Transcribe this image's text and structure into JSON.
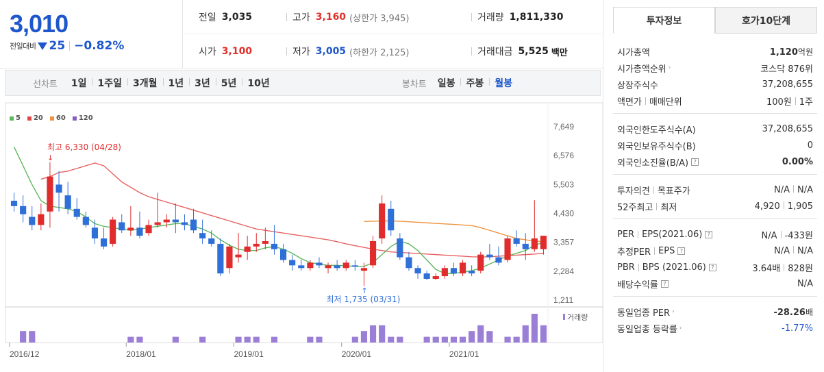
{
  "price": {
    "current": "3,010",
    "change_label": "전일대비",
    "change_amount": "25",
    "change_rate": "−0.82%"
  },
  "info": {
    "prev_label": "전일",
    "prev_value": "3,035",
    "high_label": "고가",
    "high_value": "3,160",
    "high_sub": "(상한가 3,945)",
    "volume_label": "거래량",
    "volume_value": "1,811,330",
    "open_label": "시가",
    "open_value": "3,100",
    "low_label": "저가",
    "low_value": "3,005",
    "low_sub": "(하한가 2,125)",
    "amount_label": "거래대금",
    "amount_value": "5,525",
    "amount_unit": "백만"
  },
  "tabs": {
    "line_label": "선차트",
    "line_periods": [
      "1일",
      "1주일",
      "3개월",
      "1년",
      "3년",
      "5년",
      "10년"
    ],
    "candle_label": "봉차트",
    "candle_periods": [
      "일봉",
      "주봉",
      "월봉"
    ],
    "active_candle": "월봉"
  },
  "legend": [
    {
      "name": "5",
      "color": "#5cb85c"
    },
    {
      "name": "20",
      "color": "#e04848"
    },
    {
      "name": "60",
      "color": "#f0923c"
    },
    {
      "name": "120",
      "color": "#8a5cc4"
    }
  ],
  "chart_data": {
    "type": "candlestick",
    "y_ticks": [
      "7,649",
      "6,576",
      "5,503",
      "4,430",
      "3,357",
      "2,284",
      "1,211"
    ],
    "y_tick_values": [
      7649,
      6576,
      5503,
      4430,
      3357,
      2284,
      1211
    ],
    "x_ticks": [
      "2016/12",
      "2018/01",
      "2019/01",
      "2020/01",
      "2021/01"
    ],
    "x_tick_index": [
      0,
      13,
      25,
      37,
      49
    ],
    "volume_label": "거래량",
    "high_annotation": "최고 6,330 (04/28)",
    "low_annotation": "최저 1,735 (03/31)",
    "high_index": 4,
    "low_index": 39,
    "ohlc": [
      [
        4900,
        5200,
        4500,
        4700
      ],
      [
        4700,
        5100,
        4100,
        4400
      ],
      [
        4300,
        4700,
        3800,
        4000
      ],
      [
        4000,
        4800,
        3800,
        4400
      ],
      [
        4500,
        6330,
        3900,
        5800
      ],
      [
        5500,
        6000,
        4500,
        5200
      ],
      [
        5100,
        5600,
        4400,
        4600
      ],
      [
        4600,
        5000,
        4200,
        4300
      ],
      [
        4300,
        4500,
        3900,
        4000
      ],
      [
        3900,
        4200,
        3300,
        3500
      ],
      [
        3500,
        3900,
        3100,
        3200
      ],
      [
        3300,
        4300,
        3200,
        4200
      ],
      [
        4100,
        4400,
        3700,
        3800
      ],
      [
        3800,
        4700,
        3600,
        3900
      ],
      [
        3900,
        4500,
        3500,
        3600
      ],
      [
        3700,
        4200,
        3600,
        4000
      ],
      [
        4000,
        5200,
        3900,
        4100
      ],
      [
        4100,
        4400,
        3900,
        4200
      ],
      [
        4200,
        4800,
        3700,
        4100
      ],
      [
        4100,
        4400,
        3800,
        4000
      ],
      [
        4200,
        4600,
        3700,
        3800
      ],
      [
        3700,
        4200,
        3300,
        3500
      ],
      [
        3500,
        3800,
        3200,
        3300
      ],
      [
        3300,
        3500,
        2100,
        2200
      ],
      [
        2400,
        3300,
        2200,
        3200
      ],
      [
        2800,
        3700,
        2600,
        2900
      ],
      [
        3000,
        3600,
        2700,
        3200
      ],
      [
        3200,
        3700,
        3000,
        3300
      ],
      [
        3300,
        3900,
        3100,
        3400
      ],
      [
        3300,
        4000,
        2900,
        3100
      ],
      [
        3100,
        3300,
        2600,
        2700
      ],
      [
        2700,
        2900,
        2300,
        2500
      ],
      [
        2500,
        2700,
        2300,
        2400
      ],
      [
        2400,
        2700,
        2300,
        2600
      ],
      [
        2600,
        2800,
        2400,
        2500
      ],
      [
        2400,
        2600,
        2200,
        2500
      ],
      [
        2500,
        2700,
        2300,
        2400
      ],
      [
        2400,
        2700,
        2300,
        2600
      ],
      [
        2500,
        2700,
        2300,
        2450
      ],
      [
        2300,
        2600,
        1735,
        2400
      ],
      [
        2500,
        3600,
        2400,
        3400
      ],
      [
        3500,
        5100,
        3300,
        4800
      ],
      [
        4600,
        4900,
        3600,
        3800
      ],
      [
        3500,
        3700,
        2700,
        2800
      ],
      [
        2800,
        3000,
        2300,
        2400
      ],
      [
        2400,
        2500,
        2000,
        2200
      ],
      [
        2200,
        2300,
        1950,
        2000
      ],
      [
        2000,
        2200,
        1950,
        2100
      ],
      [
        2100,
        2500,
        2000,
        2400
      ],
      [
        2400,
        2600,
        2100,
        2200
      ],
      [
        2200,
        2700,
        2100,
        2600
      ],
      [
        2300,
        2500,
        2100,
        2200
      ],
      [
        2300,
        3000,
        2200,
        2900
      ],
      [
        2900,
        3300,
        2700,
        2800
      ],
      [
        2800,
        3200,
        2500,
        2600
      ],
      [
        2700,
        3600,
        2600,
        3500
      ],
      [
        3500,
        3800,
        3200,
        3300
      ],
      [
        3300,
        3700,
        2700,
        3100
      ],
      [
        3100,
        4920,
        3000,
        3500
      ],
      [
        3100,
        3600,
        2900,
        3600
      ]
    ],
    "volume": [
      0,
      2,
      2,
      0,
      0,
      0,
      0,
      0,
      0,
      0,
      0,
      0,
      0,
      1,
      1,
      0,
      0,
      0,
      1,
      0,
      0,
      1,
      0,
      0,
      0,
      1,
      1,
      1,
      0,
      1,
      0,
      0,
      0,
      1,
      1,
      0,
      0,
      0,
      1,
      2,
      3,
      3,
      1,
      1,
      0,
      0,
      1,
      1,
      1,
      1,
      1,
      2,
      3,
      2,
      0,
      1,
      1,
      3,
      5,
      3
    ],
    "ma5": [
      6900,
      6200,
      5500,
      4900,
      4700,
      4650,
      4600,
      4500,
      4300,
      4050,
      3950,
      3900,
      3850,
      3800,
      3850,
      3900,
      3950,
      4000,
      4050,
      4050,
      3950,
      3850,
      3700,
      3450,
      3250,
      3100,
      3050,
      3050,
      3150,
      3200,
      3100,
      2950,
      2750,
      2600,
      2550,
      2500,
      2500,
      2480,
      2470,
      2460,
      2600,
      2900,
      3200,
      3400,
      3300,
      3050,
      2700,
      2350,
      2200,
      2200,
      2250,
      2300,
      2400,
      2550,
      2700,
      2850,
      2950,
      3050,
      3250,
      3350
    ],
    "ma20": [
      null,
      null,
      null,
      5700,
      5800,
      5950,
      6000,
      6100,
      6200,
      6300,
      6200,
      5900,
      5600,
      5400,
      5200,
      5050,
      4950,
      4850,
      4750,
      4650,
      4550,
      4450,
      4350,
      4250,
      4150,
      4050,
      3950,
      3850,
      3800,
      3750,
      3700,
      3650,
      3600,
      3550,
      3500,
      3450,
      3380,
      3300,
      3230,
      3170,
      3100,
      3050,
      3000,
      2980,
      2960,
      2940,
      2920,
      2900,
      2880,
      2860,
      2840,
      2820,
      2810,
      2820,
      2840,
      2860,
      2880,
      2900,
      2920,
      2950
    ],
    "ma60": [
      null,
      null,
      null,
      null,
      null,
      null,
      null,
      null,
      null,
      null,
      null,
      null,
      null,
      null,
      null,
      null,
      null,
      null,
      null,
      null,
      null,
      null,
      null,
      null,
      null,
      null,
      null,
      null,
      null,
      null,
      null,
      null,
      null,
      null,
      null,
      null,
      null,
      null,
      null,
      4130,
      4140,
      4150,
      4150,
      4140,
      4120,
      4100,
      4080,
      4060,
      4040,
      4020,
      4000,
      3980,
      3900,
      3800,
      3700,
      3600,
      3500,
      3450,
      3400,
      3380
    ]
  },
  "right": {
    "tab_invest": "투자정보",
    "tab_hoga": "호가10단계",
    "sec1": [
      {
        "k": "시가총액",
        "v": "1,120",
        "unit": "억원"
      },
      {
        "k": "시가총액순위",
        "v": "코스닥 876위"
      },
      {
        "k": "상장주식수",
        "v": "37,208,655"
      },
      {
        "k1": "액면가",
        "k2": "매매단위",
        "v1": "100원",
        "v2": "1주"
      }
    ],
    "sec2": [
      {
        "k": "외국인한도주식수(A)",
        "v": "37,208,655"
      },
      {
        "k": "외국인보유주식수(B)",
        "v": "0"
      },
      {
        "k": "외국인소진율(B/A)",
        "v": "0.00%"
      }
    ],
    "sec3": [
      {
        "k1": "투자의견",
        "k2": "목표주가",
        "v1": "N/A",
        "v2": "N/A"
      },
      {
        "k1": "52주최고",
        "k2": "최저",
        "v1": "4,920",
        "v2": "1,905"
      }
    ],
    "sec4": [
      {
        "k1": "PER",
        "k2": "EPS(2021.06)",
        "v1": "N/A",
        "v2": "-433원"
      },
      {
        "k1": "추정PER",
        "k2": "EPS",
        "v1": "N/A",
        "v2": "N/A"
      },
      {
        "k1": "PBR",
        "k2": "BPS (2021.06)",
        "v1": "3.64배",
        "v2": "828원"
      },
      {
        "k": "배당수익률",
        "v": "N/A"
      }
    ],
    "sec5": [
      {
        "k": "동일업종 PER",
        "v": "-28.26",
        "unit": "배"
      },
      {
        "k": "동일업종 등락률",
        "v": "-1.77%"
      }
    ]
  }
}
